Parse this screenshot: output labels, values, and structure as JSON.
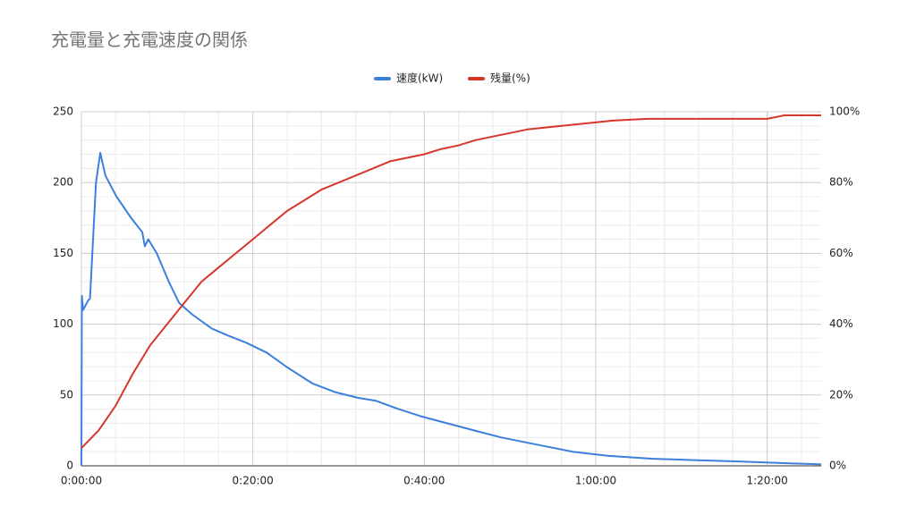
{
  "chart_data": {
    "type": "line",
    "title": "充電量と充電速度の関係",
    "series": [
      {
        "name": "速度(kW)",
        "color": "#3d7fdc",
        "x": [
          0,
          0.05,
          0.2,
          0.8,
          1.0,
          1.7,
          2.2,
          2.8,
          4.1,
          5.8,
          7.1,
          7.4,
          7.8,
          8.8,
          10.2,
          11.4,
          12.9,
          15.2,
          17.1,
          19.2,
          21.6,
          23.9,
          27,
          29.6,
          32.3,
          34.3,
          37,
          39.6,
          42.7,
          45.8,
          49,
          53.1,
          57.3,
          61.5,
          66.7,
          71.9,
          77.1,
          81.3,
          86.3
        ],
        "values": [
          0,
          120,
          110,
          117,
          118,
          200,
          221,
          205,
          190,
          175,
          165,
          155,
          160,
          150,
          130,
          115,
          107,
          97,
          92,
          87,
          80,
          70,
          58,
          52,
          48,
          46,
          40,
          35,
          30,
          25,
          20,
          15,
          10,
          7,
          5,
          4,
          3,
          2,
          1
        ]
      },
      {
        "name": "残量(%)",
        "color": "#d6372b",
        "axis": "y2",
        "x": [
          0,
          2,
          4,
          6,
          8,
          10,
          12,
          14,
          16,
          18,
          20,
          22,
          24,
          26,
          28,
          30,
          32,
          34,
          36,
          38,
          40,
          42,
          44,
          46,
          48,
          50,
          52,
          54,
          56,
          60,
          62,
          66,
          80,
          82,
          86.3
        ],
        "values": [
          5,
          10,
          17,
          26,
          34,
          40,
          46,
          52,
          56,
          60,
          64,
          68,
          72,
          75,
          78,
          80,
          82,
          84,
          86,
          87,
          88,
          89.5,
          90.5,
          92,
          93,
          94,
          95,
          95.5,
          96,
          97,
          97.5,
          98,
          98,
          99,
          99
        ]
      }
    ],
    "xlim": [
      0,
      86.3
    ],
    "xticks": [
      {
        "value": 0,
        "label": "0:00:00"
      },
      {
        "value": 20,
        "label": "0:20:00"
      },
      {
        "value": 40,
        "label": "0:40:00"
      },
      {
        "value": 60,
        "label": "1:00:00"
      },
      {
        "value": 80,
        "label": "1:20:00"
      }
    ],
    "ylim": [
      0,
      250
    ],
    "yticks": [
      0,
      50,
      100,
      150,
      200,
      250
    ],
    "y2lim": [
      0,
      100
    ],
    "y2ticks": [
      {
        "value": 0,
        "label": "0%"
      },
      {
        "value": 20,
        "label": "20%"
      },
      {
        "value": 40,
        "label": "40%"
      },
      {
        "value": 60,
        "label": "60%"
      },
      {
        "value": 80,
        "label": "80%"
      },
      {
        "value": 100,
        "label": "100%"
      }
    ],
    "grid": true,
    "legend": "top"
  }
}
